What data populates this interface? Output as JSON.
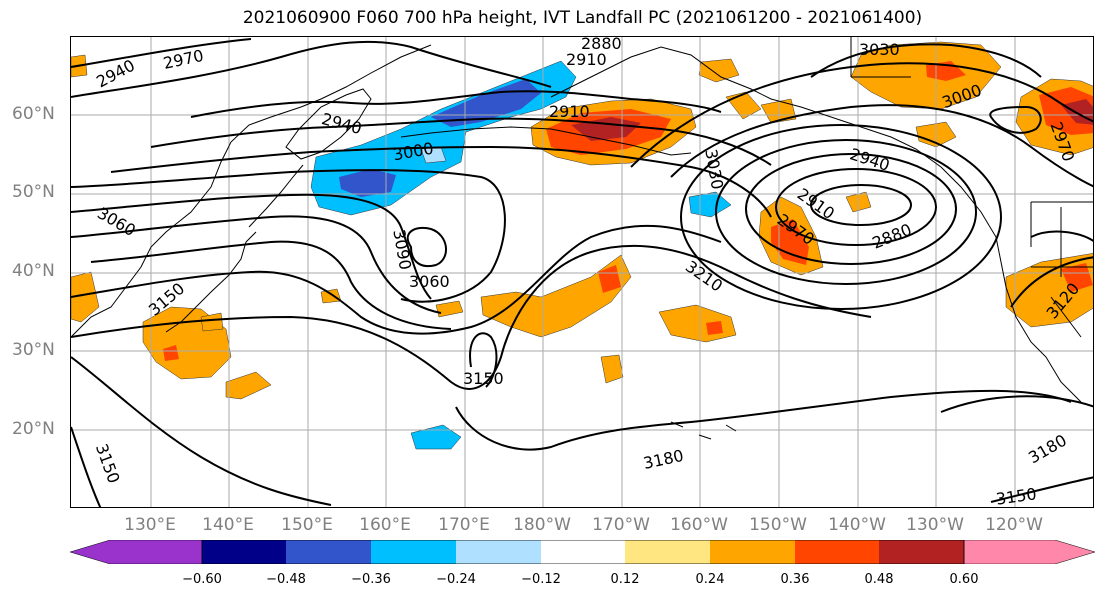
{
  "title": "2021060900 F060 700 hPa height, IVT Landfall PC (2021061200 - 2021061400)",
  "lat_labels": [
    "60°N",
    "50°N",
    "40°N",
    "30°N",
    "20°N"
  ],
  "lon_labels": [
    "130°E",
    "140°E",
    "150°E",
    "160°E",
    "170°E",
    "180°W",
    "170°W",
    "160°W",
    "150°W",
    "140°W",
    "130°W",
    "120°W"
  ],
  "contour_labels": [
    "2940",
    "2970",
    "2880",
    "2910",
    "2910",
    "2940",
    "3000",
    "3060",
    "3090",
    "3060",
    "3150",
    "3150",
    "3210",
    "3030",
    "2940",
    "2910",
    "2970",
    "2880",
    "3000",
    "3030",
    "2970",
    "3120",
    "3180",
    "3180",
    "3150",
    "3150"
  ],
  "colorbar": {
    "ticks": [
      "−0.60",
      "−0.48",
      "−0.36",
      "−0.24",
      "−0.12",
      "0.12",
      "0.24",
      "0.36",
      "0.48",
      "0.60"
    ],
    "colors": [
      "#9933cc",
      "#000088",
      "#3355cc",
      "#00bfff",
      "#b0e0ff",
      "#ffffff",
      "#ffe680",
      "#ffa500",
      "#ff4500",
      "#b22222",
      "#ff88aa"
    ]
  },
  "palette": {
    "grid": "#aaaaaa",
    "contour": "#000000",
    "coast": "#000000"
  }
}
